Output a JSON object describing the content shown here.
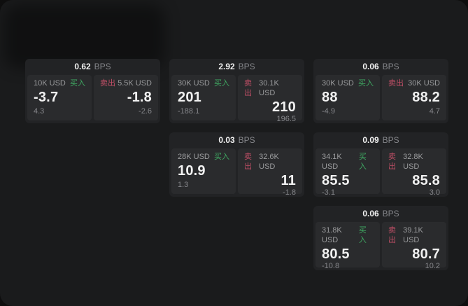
{
  "colors": {
    "page_bg": "#0e0e0e",
    "panel_bg": "#1a1b1c",
    "card_bg": "#222325",
    "tile_bg": "#2a2b2d",
    "text_primary": "#f1f1f1",
    "text_muted": "#9a9b9d",
    "text_dim": "#85868a",
    "buy_green": "#3fa862",
    "sell_red": "#c04f66"
  },
  "labels": {
    "bps": "BPS",
    "buy": "买入",
    "sell": "卖出"
  },
  "cards": [
    {
      "col": 1,
      "row": 1,
      "bps": "0.62",
      "buy": {
        "amount": "10K USD",
        "price": "-3.7",
        "delta": "4.3"
      },
      "sell": {
        "amount": "5.5K USD",
        "price": "-1.8",
        "delta": "-2.6"
      }
    },
    {
      "col": 2,
      "row": 1,
      "bps": "2.92",
      "buy": {
        "amount": "30K USD",
        "price": "201",
        "delta": "-188.1"
      },
      "sell": {
        "amount": "30.1K USD",
        "price": "210",
        "delta": "196.5"
      }
    },
    {
      "col": 3,
      "row": 1,
      "bps": "0.06",
      "buy": {
        "amount": "30K USD",
        "price": "88",
        "delta": "-4.9"
      },
      "sell": {
        "amount": "30K USD",
        "price": "88.2",
        "delta": "4.7"
      }
    },
    {
      "col": 2,
      "row": 2,
      "bps": "0.03",
      "buy": {
        "amount": "28K USD",
        "price": "10.9",
        "delta": "1.3"
      },
      "sell": {
        "amount": "32.6K USD",
        "price": "11",
        "delta": "-1.8"
      }
    },
    {
      "col": 3,
      "row": 2,
      "bps": "0.09",
      "buy": {
        "amount": "34.1K USD",
        "price": "85.5",
        "delta": "-3.1"
      },
      "sell": {
        "amount": "32.8K USD",
        "price": "85.8",
        "delta": "3.0"
      }
    },
    {
      "col": 3,
      "row": 3,
      "bps": "0.06",
      "buy": {
        "amount": "31.8K USD",
        "price": "80.5",
        "delta": "-10.8"
      },
      "sell": {
        "amount": "39.1K USD",
        "price": "80.7",
        "delta": "10.2"
      }
    }
  ]
}
